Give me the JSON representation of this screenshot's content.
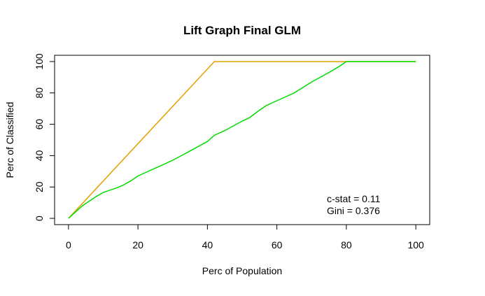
{
  "chart_data": {
    "type": "line",
    "title": "Lift Graph Final GLM",
    "xlabel": "Perc of Population",
    "ylabel": "Perc of Classified",
    "xlim": [
      -4,
      104
    ],
    "ylim": [
      -4,
      104
    ],
    "xticks": [
      0,
      20,
      40,
      60,
      80,
      100
    ],
    "yticks": [
      0,
      20,
      40,
      60,
      80,
      100
    ],
    "grid": false,
    "legend": "none",
    "series": [
      {
        "color": "#e69f00",
        "x": [
          0,
          42,
          100
        ],
        "y": [
          0,
          100,
          100
        ]
      },
      {
        "color": "#00dd00",
        "x": [
          0,
          2,
          4,
          6,
          8,
          10,
          12,
          14,
          16,
          18,
          20,
          25,
          30,
          35,
          40,
          42,
          45,
          50,
          52,
          55,
          57,
          60,
          65,
          70,
          75,
          78,
          80,
          100
        ],
        "y": [
          0,
          4,
          8,
          11,
          14,
          16.5,
          18,
          19.5,
          21.5,
          24,
          27,
          32,
          37,
          43,
          49,
          53,
          56,
          62,
          64,
          69,
          72,
          75,
          80,
          87,
          93,
          97,
          100,
          100
        ]
      }
    ],
    "annotations": [
      {
        "text": "c-stat = 0.11"
      },
      {
        "text": "Gini = 0.376"
      }
    ]
  }
}
